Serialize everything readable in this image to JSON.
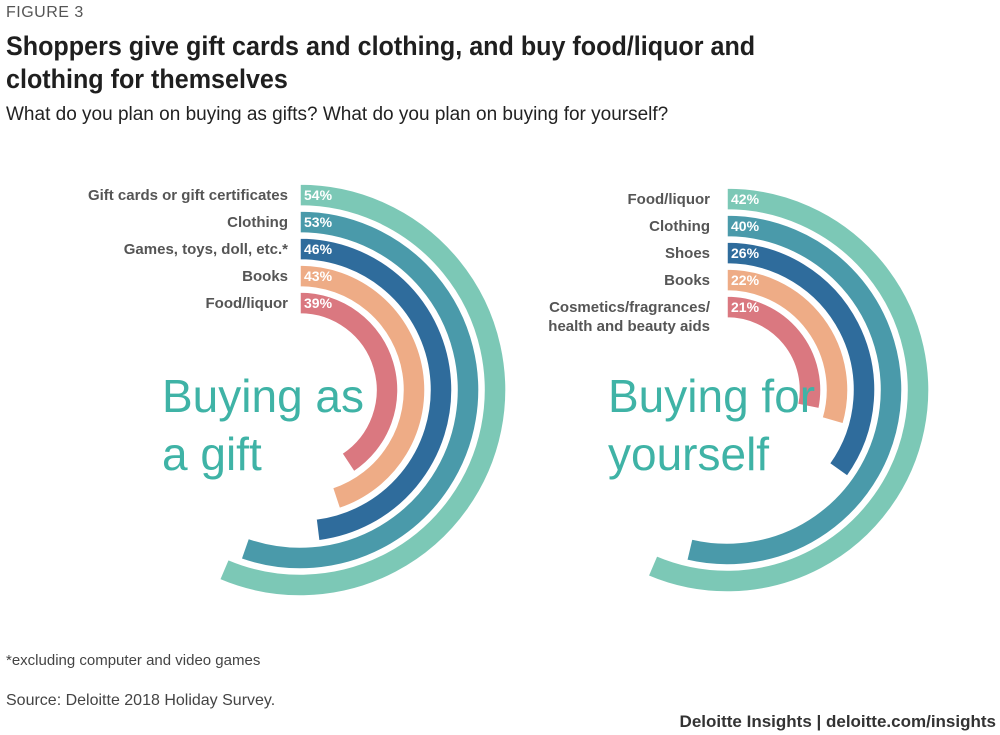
{
  "figure_label": "FIGURE 3",
  "title": "Shoppers give gift cards and clothing, and buy food/liquor and clothing for themselves",
  "subtitle": "What do you plan on buying as gifts? What do you plan on buying for yourself?",
  "footnote": "*excluding computer and video games",
  "source": "Source: Deloitte 2018 Holiday Survey.",
  "brand": "Deloitte Insights | deloitte.com/insights",
  "colors": [
    "#7cc8b6",
    "#4a9aaa",
    "#2f6c9c",
    "#eeac86",
    "#da7880"
  ],
  "chart_data": [
    {
      "type": "radial-bar",
      "title": "Buying as a gift",
      "title_lines": [
        "Buying as",
        "a gift"
      ],
      "unit": "%",
      "categories": [
        "Gift cards or gift certificates",
        "Clothing",
        "Games, toys, doll, etc.*",
        "Books",
        "Food/liquor"
      ],
      "values": [
        54,
        53,
        46,
        43,
        39
      ],
      "value_labels": [
        "54%",
        "53%",
        "46%",
        "43%",
        "39%"
      ]
    },
    {
      "type": "radial-bar",
      "title": "Buying for yourself",
      "title_lines": [
        "Buying for",
        "yourself"
      ],
      "unit": "%",
      "categories": [
        "Food/liquor",
        "Clothing",
        "Shoes",
        "Books",
        "Cosmetics/fragrances/ health and beauty aids"
      ],
      "category_lines": [
        [
          "Food/liquor"
        ],
        [
          "Clothing"
        ],
        [
          "Shoes"
        ],
        [
          "Books"
        ],
        [
          "Cosmetics/fragrances/",
          "health and beauty aids"
        ]
      ],
      "values": [
        42,
        40,
        26,
        22,
        21
      ],
      "value_labels": [
        "42%",
        "40%",
        "26%",
        "22%",
        "21%"
      ]
    }
  ]
}
